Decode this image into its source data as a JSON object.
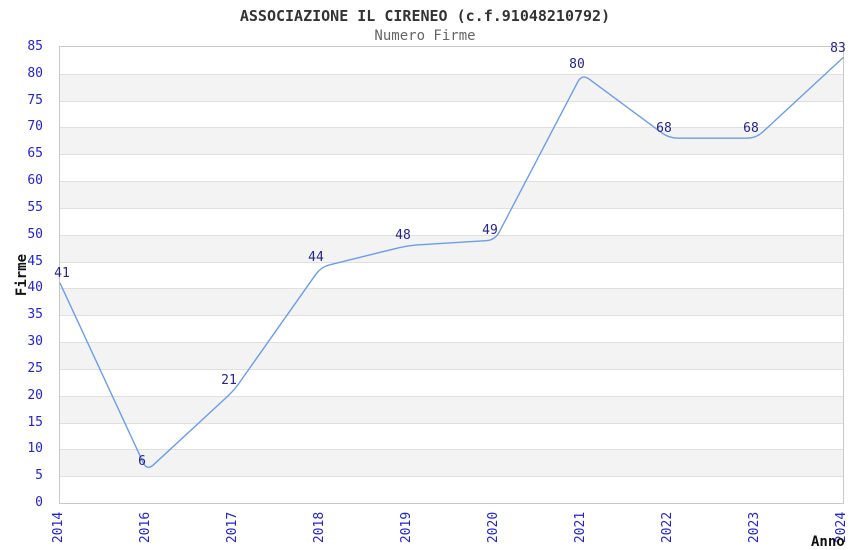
{
  "chart_data": {
    "type": "line",
    "title": "ASSOCIAZIONE IL CIRENEO (c.f.91048210792)",
    "subtitle": "Numero Firme",
    "xlabel": "Anno",
    "ylabel": "Firme",
    "categories": [
      "2014",
      "2016",
      "2017",
      "2018",
      "2019",
      "2020",
      "2021",
      "2022",
      "2023",
      "2024"
    ],
    "values": [
      41,
      6,
      21,
      44,
      48,
      49,
      80,
      68,
      68,
      83
    ],
    "ylim": [
      0,
      85
    ],
    "ytick_step": 5,
    "grid": "alternating-horizontal-bands",
    "legend": "none",
    "colors": {
      "line": "#6c9ded",
      "tick_label": "#2323d6",
      "value_label": "#26268c",
      "title": "#333333",
      "subtitle": "#666666",
      "axis_title": "#111111",
      "band": "#f3f3f3",
      "gridline": "#e0e0e0",
      "border": "#c9c9c9"
    }
  }
}
